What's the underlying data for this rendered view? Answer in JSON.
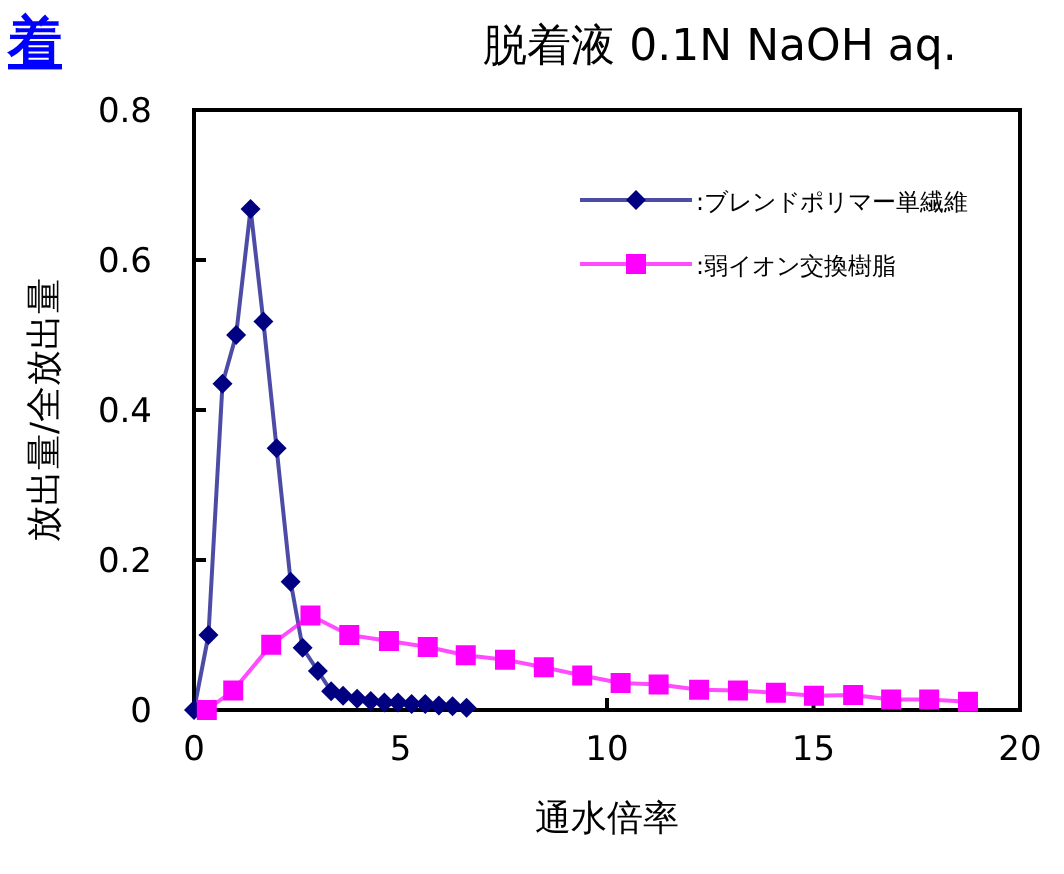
{
  "chart_data": {
    "type": "line",
    "title": "脱着液 0.1N NaOH aq.",
    "xlabel": "通水倍率",
    "ylabel": "放出量/全放出量",
    "annotations": [
      "着"
    ],
    "xlim": [
      0,
      20
    ],
    "xticks": [
      0,
      5,
      10,
      15,
      20
    ],
    "ylim": [
      0,
      0.8
    ],
    "yticks": [
      0,
      0.2,
      0.4,
      0.6,
      0.8
    ],
    "grid": false,
    "legend": "top right",
    "line_style": "solid",
    "series": [
      {
        "name": ":ブレンドポリマー単繊維",
        "color": "#000080",
        "marker": "diamond",
        "x": [
          0,
          0.35,
          0.69,
          1.02,
          1.37,
          1.68,
          2.0,
          2.34,
          2.63,
          3.0,
          3.32,
          3.61,
          3.95,
          4.28,
          4.61,
          4.94,
          5.27,
          5.6,
          5.93,
          6.26,
          6.6
        ],
        "values": [
          0,
          0.1,
          0.435,
          0.5,
          0.668,
          0.518,
          0.349,
          0.171,
          0.083,
          0.052,
          0.025,
          0.019,
          0.015,
          0.012,
          0.01,
          0.01,
          0.008,
          0.008,
          0.006,
          0.005,
          0.003
        ]
      },
      {
        "name": ":弱イオン交換樹脂",
        "color": "#ff00ff",
        "marker": "square",
        "x": [
          0.31,
          0.95,
          1.87,
          2.82,
          3.76,
          4.72,
          5.66,
          6.58,
          7.53,
          8.47,
          9.4,
          10.33,
          11.25,
          12.23,
          13.17,
          14.09,
          15.01,
          15.96,
          16.88,
          17.8,
          18.74
        ],
        "values": [
          0,
          0.026,
          0.087,
          0.126,
          0.1,
          0.092,
          0.084,
          0.073,
          0.067,
          0.057,
          0.046,
          0.036,
          0.034,
          0.027,
          0.026,
          0.023,
          0.019,
          0.02,
          0.014,
          0.014,
          0.011
        ]
      }
    ]
  }
}
